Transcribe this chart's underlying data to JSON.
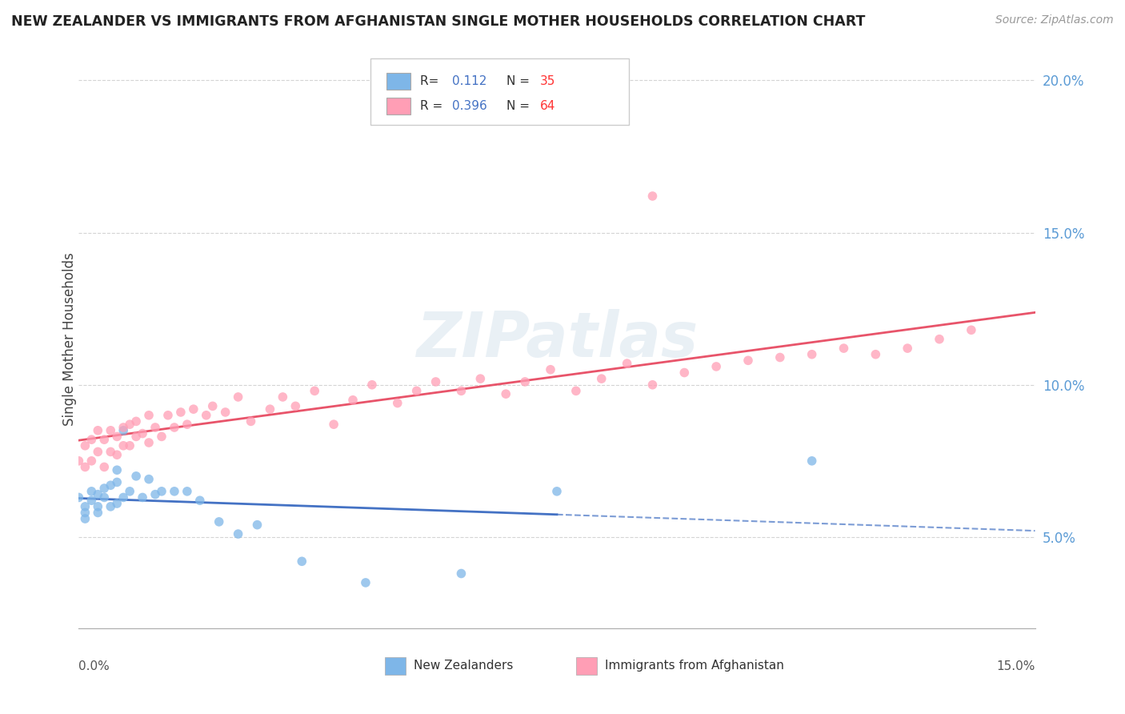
{
  "title": "NEW ZEALANDER VS IMMIGRANTS FROM AFGHANISTAN SINGLE MOTHER HOUSEHOLDS CORRELATION CHART",
  "source": "Source: ZipAtlas.com",
  "ylabel": "Single Mother Households",
  "xmin": 0.0,
  "xmax": 0.15,
  "ymin": 0.02,
  "ymax": 0.21,
  "blue_color": "#7EB6E8",
  "pink_color": "#FF9EB5",
  "blue_line_color": "#4472C4",
  "pink_line_color": "#E8546A",
  "watermark": "ZIPatlas",
  "legend_label_blue": "New Zealanders",
  "legend_label_pink": "Immigrants from Afghanistan",
  "nz_x": [
    0.0,
    0.001,
    0.001,
    0.001,
    0.002,
    0.002,
    0.003,
    0.003,
    0.003,
    0.004,
    0.004,
    0.005,
    0.005,
    0.006,
    0.006,
    0.006,
    0.007,
    0.007,
    0.008,
    0.009,
    0.01,
    0.011,
    0.012,
    0.013,
    0.015,
    0.017,
    0.019,
    0.022,
    0.025,
    0.028,
    0.035,
    0.045,
    0.06,
    0.075,
    0.115
  ],
  "nz_y": [
    0.063,
    0.06,
    0.058,
    0.056,
    0.062,
    0.065,
    0.06,
    0.058,
    0.064,
    0.063,
    0.066,
    0.06,
    0.067,
    0.061,
    0.068,
    0.072,
    0.063,
    0.085,
    0.065,
    0.07,
    0.063,
    0.069,
    0.064,
    0.065,
    0.065,
    0.065,
    0.062,
    0.055,
    0.051,
    0.054,
    0.042,
    0.035,
    0.038,
    0.065,
    0.075
  ],
  "af_x": [
    0.0,
    0.001,
    0.001,
    0.002,
    0.002,
    0.003,
    0.003,
    0.004,
    0.004,
    0.005,
    0.005,
    0.006,
    0.006,
    0.007,
    0.007,
    0.008,
    0.008,
    0.009,
    0.009,
    0.01,
    0.011,
    0.011,
    0.012,
    0.013,
    0.014,
    0.015,
    0.016,
    0.017,
    0.018,
    0.02,
    0.021,
    0.023,
    0.025,
    0.027,
    0.03,
    0.032,
    0.034,
    0.037,
    0.04,
    0.043,
    0.046,
    0.05,
    0.053,
    0.056,
    0.06,
    0.063,
    0.067,
    0.07,
    0.074,
    0.078,
    0.082,
    0.086,
    0.09,
    0.095,
    0.1,
    0.105,
    0.11,
    0.115,
    0.12,
    0.125,
    0.13,
    0.135,
    0.14,
    0.09
  ],
  "af_y": [
    0.075,
    0.073,
    0.08,
    0.075,
    0.082,
    0.078,
    0.085,
    0.073,
    0.082,
    0.078,
    0.085,
    0.077,
    0.083,
    0.08,
    0.086,
    0.08,
    0.087,
    0.083,
    0.088,
    0.084,
    0.09,
    0.081,
    0.086,
    0.083,
    0.09,
    0.086,
    0.091,
    0.087,
    0.092,
    0.09,
    0.093,
    0.091,
    0.096,
    0.088,
    0.092,
    0.096,
    0.093,
    0.098,
    0.087,
    0.095,
    0.1,
    0.094,
    0.098,
    0.101,
    0.098,
    0.102,
    0.097,
    0.101,
    0.105,
    0.098,
    0.102,
    0.107,
    0.1,
    0.104,
    0.106,
    0.108,
    0.109,
    0.11,
    0.112,
    0.11,
    0.112,
    0.115,
    0.118,
    0.162
  ]
}
